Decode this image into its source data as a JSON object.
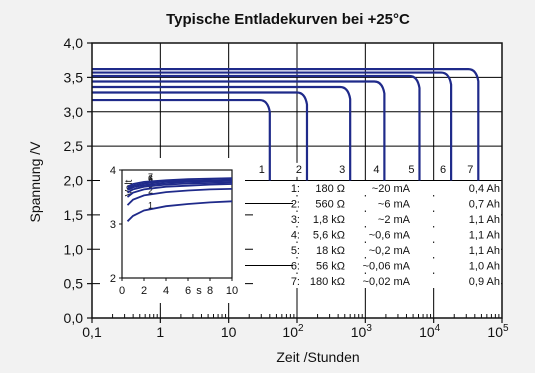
{
  "colors": {
    "background": "#f2f2f2",
    "plot_background": "#ffffff",
    "axis": "#111111",
    "grid": "#000000",
    "curve": "#1f2a8a",
    "text": "#111111"
  },
  "chart_data": {
    "type": "line",
    "title": "Typische Entladekurven bei +25°C",
    "xlabel": "Zeit /Stunden",
    "ylabel": "Spannung /V",
    "x_scale": "log",
    "xlim": [
      0.1,
      100000
    ],
    "ylim": [
      0.0,
      4.0
    ],
    "grid": true,
    "x_ticks": [
      {
        "value": 0.1,
        "label": "0,1"
      },
      {
        "value": 1,
        "label": "1"
      },
      {
        "value": 10,
        "label": "10"
      },
      {
        "value": 100,
        "base": "10",
        "exp": "2"
      },
      {
        "value": 1000,
        "base": "10",
        "exp": "3"
      },
      {
        "value": 10000,
        "base": "10",
        "exp": "4"
      },
      {
        "value": 100000,
        "base": "10",
        "exp": "5"
      }
    ],
    "y_ticks": [
      {
        "value": 0.0,
        "label": "0,0"
      },
      {
        "value": 0.5,
        "label": "0,5"
      },
      {
        "value": 1.0,
        "label": "1,0"
      },
      {
        "value": 1.5,
        "label": "1,5"
      },
      {
        "value": 2.0,
        "label": "2,0"
      },
      {
        "value": 2.5,
        "label": "2,5"
      },
      {
        "value": 3.0,
        "label": "3,0"
      },
      {
        "value": 3.5,
        "label": "3,5"
      },
      {
        "value": 4.0,
        "label": "4,0"
      }
    ],
    "series": [
      {
        "name": "1",
        "plateau_v": 3.17,
        "end_h": 40,
        "resistance": "180 Ω",
        "current": "~20 mA",
        "capacity": "0,4 Ah"
      },
      {
        "name": "2",
        "plateau_v": 3.28,
        "end_h": 140,
        "resistance": "560 Ω",
        "current": "~6 mA",
        "capacity": "0,7 Ah"
      },
      {
        "name": "3",
        "plateau_v": 3.36,
        "end_h": 600,
        "resistance": "1,8 kΩ",
        "current": "~2 mA",
        "capacity": "1,1 Ah"
      },
      {
        "name": "4",
        "plateau_v": 3.44,
        "end_h": 1900,
        "resistance": "5,6 kΩ",
        "current": "~0,6 mA",
        "capacity": "1,1 Ah"
      },
      {
        "name": "5",
        "plateau_v": 3.52,
        "end_h": 6200,
        "resistance": "18 kΩ",
        "current": "~0,2 mA",
        "capacity": "1,1 Ah"
      },
      {
        "name": "6",
        "plateau_v": 3.57,
        "end_h": 18000,
        "resistance": "56 kΩ",
        "current": "~0,06 mA",
        "capacity": "1,0 Ah"
      },
      {
        "name": "7",
        "plateau_v": 3.62,
        "end_h": 45000,
        "resistance": "180 kΩ",
        "current": "~0,02 mA",
        "capacity": "0,9 Ah"
      }
    ],
    "legend_rows": [
      {
        "num": "1:",
        "resistance": "180 Ω",
        "current": "~20 mA",
        "capacity": "0,4 Ah"
      },
      {
        "num": "2:",
        "resistance": "560 Ω",
        "current": "~6 mA",
        "capacity": "0,7 Ah"
      },
      {
        "num": "3:",
        "resistance": "1,8 kΩ",
        "current": "~2 mA",
        "capacity": "1,1 Ah"
      },
      {
        "num": "4:",
        "resistance": "5,6 kΩ",
        "current": "~0,6 mA",
        "capacity": "1,1 Ah"
      },
      {
        "num": "5:",
        "resistance": "18 kΩ",
        "current": "~0,2 mA",
        "capacity": "1,1 Ah"
      },
      {
        "num": "6:",
        "resistance": "56 kΩ",
        "current": "~0,06 mA",
        "capacity": "1,0 Ah"
      },
      {
        "num": "7:",
        "resistance": "180 kΩ",
        "current": "~0,02 mA",
        "capacity": "0,9 Ah"
      }
    ],
    "inset": {
      "ylabel": "Volt",
      "xlabel": "s",
      "xlim": [
        0,
        10
      ],
      "ylim": [
        2,
        4
      ],
      "x_ticks": [
        {
          "value": 0,
          "label": "0"
        },
        {
          "value": 2,
          "label": "2"
        },
        {
          "value": 4,
          "label": "4"
        },
        {
          "value": 6,
          "label": "6"
        },
        {
          "value": 8,
          "label": "8"
        },
        {
          "value": 10,
          "label": "10"
        }
      ],
      "y_ticks": [
        {
          "value": 2,
          "label": "2"
        },
        {
          "value": 3,
          "label": "3"
        },
        {
          "value": 4,
          "label": "4"
        }
      ],
      "series": [
        {
          "name": "1",
          "points": [
            [
              0.5,
              3.05
            ],
            [
              1,
              3.15
            ],
            [
              2,
              3.25
            ],
            [
              4,
              3.33
            ],
            [
              6,
              3.37
            ],
            [
              8,
              3.4
            ],
            [
              10,
              3.42
            ]
          ]
        },
        {
          "name": "2",
          "points": [
            [
              0.5,
              3.35
            ],
            [
              1,
              3.45
            ],
            [
              2,
              3.53
            ],
            [
              4,
              3.59
            ],
            [
              6,
              3.62
            ],
            [
              8,
              3.64
            ],
            [
              10,
              3.65
            ]
          ]
        },
        {
          "name": "3",
          "points": [
            [
              0.5,
              3.5
            ],
            [
              1,
              3.58
            ],
            [
              2,
              3.64
            ],
            [
              4,
              3.69
            ],
            [
              6,
              3.71
            ],
            [
              8,
              3.73
            ],
            [
              10,
              3.74
            ]
          ]
        },
        {
          "name": "4",
          "points": [
            [
              0.5,
              3.58
            ],
            [
              1,
              3.64
            ],
            [
              2,
              3.69
            ],
            [
              4,
              3.73
            ],
            [
              6,
              3.75
            ],
            [
              8,
              3.76
            ],
            [
              10,
              3.77
            ]
          ]
        },
        {
          "name": "5",
          "points": [
            [
              0.5,
              3.63
            ],
            [
              1,
              3.68
            ],
            [
              2,
              3.72
            ],
            [
              4,
              3.76
            ],
            [
              6,
              3.78
            ],
            [
              8,
              3.79
            ],
            [
              10,
              3.8
            ]
          ]
        },
        {
          "name": "6",
          "points": [
            [
              0.5,
              3.66
            ],
            [
              1,
              3.71
            ],
            [
              2,
              3.75
            ],
            [
              4,
              3.79
            ],
            [
              6,
              3.8
            ],
            [
              8,
              3.81
            ],
            [
              10,
              3.82
            ]
          ]
        },
        {
          "name": "7",
          "points": [
            [
              0.5,
              3.69
            ],
            [
              1,
              3.74
            ],
            [
              2,
              3.78
            ],
            [
              4,
              3.81
            ],
            [
              6,
              3.83
            ],
            [
              8,
              3.84
            ],
            [
              10,
              3.85
            ]
          ]
        }
      ],
      "label_sequence": "1 2 3 4 5 6 7"
    }
  }
}
